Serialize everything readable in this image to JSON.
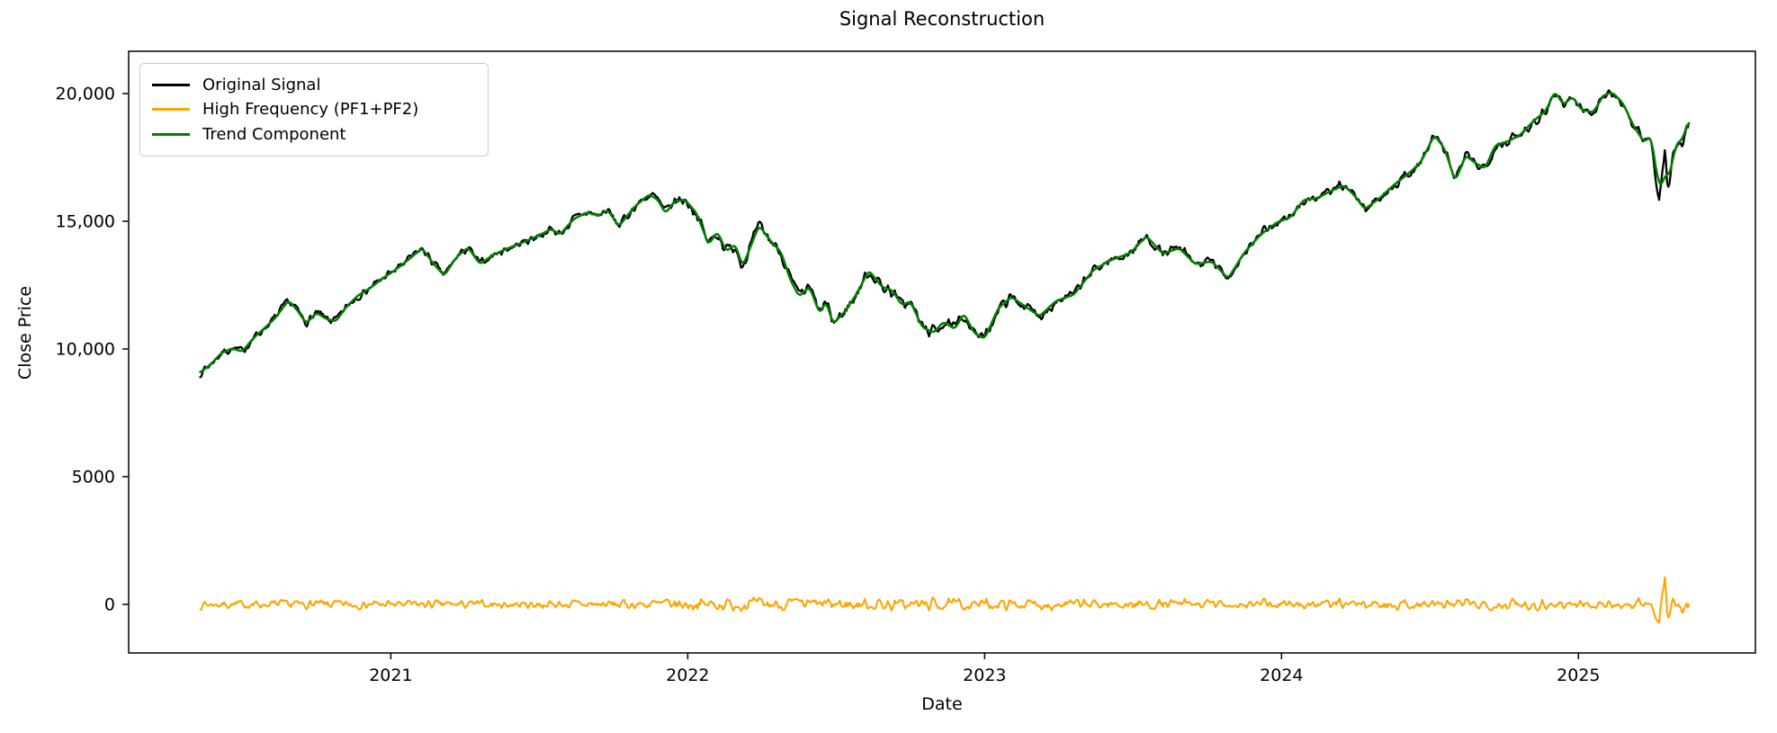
{
  "chart_data": {
    "type": "line",
    "title": "Signal Reconstruction",
    "xlabel": "Date",
    "ylabel": "Close Price",
    "grid": false,
    "legend_position": "upper left",
    "x_tick_labels": [
      "2021",
      "2022",
      "2023",
      "2024",
      "2025"
    ],
    "x_tick_values": [
      2021,
      2022,
      2023,
      2024,
      2025
    ],
    "y_tick_labels": [
      "0",
      "5000",
      "10,000",
      "15,000",
      "20,000"
    ],
    "y_tick_values": [
      0,
      5000,
      10000,
      15000,
      20000
    ],
    "xlim": [
      2020.117,
      2025.596
    ],
    "ylim": [
      -1901,
      21655
    ],
    "x_range_data": [
      2020.358,
      2025.372
    ],
    "samples": 1300,
    "series": [
      {
        "name": "Original Signal",
        "color": "#000000",
        "composition": "trend_plus_hf",
        "line_width": 2.3
      },
      {
        "name": "High Frequency (PF1+PF2)",
        "color": "#ffa500",
        "composition": "hf",
        "line_width": 2.1
      },
      {
        "name": "Trend Component",
        "color": "#008000",
        "composition": "trend",
        "line_width": 2.5
      }
    ],
    "trend_anchors": [
      [
        2020.358,
        9070
      ],
      [
        2020.395,
        9420
      ],
      [
        2020.43,
        9850
      ],
      [
        2020.465,
        10020
      ],
      [
        2020.5,
        9900
      ],
      [
        2020.535,
        10400
      ],
      [
        2020.57,
        10770
      ],
      [
        2020.61,
        11200
      ],
      [
        2020.655,
        11900
      ],
      [
        2020.685,
        11520
      ],
      [
        2020.715,
        11000
      ],
      [
        2020.75,
        11420
      ],
      [
        2020.78,
        11190
      ],
      [
        2020.815,
        11080
      ],
      [
        2020.85,
        11650
      ],
      [
        2020.89,
        12100
      ],
      [
        2020.93,
        12380
      ],
      [
        2020.97,
        12750
      ],
      [
        2021.01,
        13050
      ],
      [
        2021.06,
        13500
      ],
      [
        2021.105,
        13950
      ],
      [
        2021.145,
        13320
      ],
      [
        2021.18,
        12870
      ],
      [
        2021.22,
        13580
      ],
      [
        2021.26,
        13980
      ],
      [
        2021.3,
        13320
      ],
      [
        2021.34,
        13650
      ],
      [
        2021.385,
        13900
      ],
      [
        2021.44,
        14150
      ],
      [
        2021.5,
        14450
      ],
      [
        2021.54,
        14700
      ],
      [
        2021.57,
        14480
      ],
      [
        2021.615,
        15080
      ],
      [
        2021.66,
        15350
      ],
      [
        2021.7,
        15220
      ],
      [
        2021.73,
        15450
      ],
      [
        2021.768,
        14800
      ],
      [
        2021.82,
        15560
      ],
      [
        2021.87,
        16050
      ],
      [
        2021.9,
        15840
      ],
      [
        2021.925,
        15300
      ],
      [
        2021.955,
        15790
      ],
      [
        2021.99,
        15850
      ],
      [
        2022.03,
        15320
      ],
      [
        2022.07,
        14080
      ],
      [
        2022.1,
        14600
      ],
      [
        2022.13,
        13820
      ],
      [
        2022.16,
        14100
      ],
      [
        2022.185,
        13230
      ],
      [
        2022.24,
        14840
      ],
      [
        2022.28,
        14220
      ],
      [
        2022.315,
        13780
      ],
      [
        2022.345,
        12720
      ],
      [
        2022.375,
        12050
      ],
      [
        2022.41,
        12440
      ],
      [
        2022.445,
        11360
      ],
      [
        2022.465,
        11880
      ],
      [
        2022.49,
        10980
      ],
      [
        2022.53,
        11480
      ],
      [
        2022.57,
        12180
      ],
      [
        2022.61,
        13080
      ],
      [
        2022.655,
        12420
      ],
      [
        2022.69,
        12290
      ],
      [
        2022.72,
        11720
      ],
      [
        2022.75,
        11860
      ],
      [
        2022.79,
        10850
      ],
      [
        2022.83,
        10640
      ],
      [
        2022.86,
        11060
      ],
      [
        2022.9,
        10780
      ],
      [
        2022.93,
        11400
      ],
      [
        2022.965,
        10620
      ],
      [
        2023.0,
        10400
      ],
      [
        2023.045,
        11580
      ],
      [
        2023.09,
        12040
      ],
      [
        2023.135,
        11680
      ],
      [
        2023.185,
        11280
      ],
      [
        2023.24,
        11880
      ],
      [
        2023.3,
        12120
      ],
      [
        2023.365,
        13080
      ],
      [
        2023.425,
        13480
      ],
      [
        2023.49,
        13750
      ],
      [
        2023.545,
        14420
      ],
      [
        2023.6,
        13720
      ],
      [
        2023.655,
        13950
      ],
      [
        2023.71,
        13320
      ],
      [
        2023.765,
        13430
      ],
      [
        2023.82,
        12760
      ],
      [
        2023.875,
        13780
      ],
      [
        2023.93,
        14480
      ],
      [
        2023.985,
        14960
      ],
      [
        2024.03,
        15150
      ],
      [
        2024.075,
        15840
      ],
      [
        2024.12,
        15900
      ],
      [
        2024.165,
        16180
      ],
      [
        2024.21,
        16400
      ],
      [
        2024.245,
        16020
      ],
      [
        2024.28,
        15470
      ],
      [
        2024.33,
        15900
      ],
      [
        2024.38,
        16440
      ],
      [
        2024.43,
        16890
      ],
      [
        2024.47,
        17330
      ],
      [
        2024.515,
        18380
      ],
      [
        2024.55,
        17820
      ],
      [
        2024.585,
        16560
      ],
      [
        2024.62,
        17580
      ],
      [
        2024.65,
        17300
      ],
      [
        2024.685,
        17060
      ],
      [
        2024.72,
        17980
      ],
      [
        2024.76,
        18120
      ],
      [
        2024.8,
        18340
      ],
      [
        2024.85,
        18940
      ],
      [
        2024.89,
        19320
      ],
      [
        2024.92,
        20080
      ],
      [
        2024.95,
        19560
      ],
      [
        2024.98,
        19880
      ],
      [
        2025.01,
        19360
      ],
      [
        2025.05,
        19260
      ],
      [
        2025.085,
        19940
      ],
      [
        2025.115,
        20040
      ],
      [
        2025.15,
        19620
      ],
      [
        2025.185,
        18750
      ],
      [
        2025.22,
        18120
      ],
      [
        2025.245,
        18300
      ],
      [
        2025.268,
        16550
      ],
      [
        2025.283,
        16360
      ],
      [
        2025.293,
        17000
      ],
      [
        2025.303,
        16660
      ],
      [
        2025.33,
        18040
      ],
      [
        2025.35,
        18200
      ],
      [
        2025.372,
        18980
      ]
    ],
    "hf_noise": {
      "seed": 7,
      "smoothing_window": 3,
      "amplitude_envelope": [
        [
          2020.358,
          130
        ],
        [
          2020.8,
          140
        ],
        [
          2021.2,
          135
        ],
        [
          2021.6,
          140
        ],
        [
          2021.95,
          185
        ],
        [
          2022.2,
          210
        ],
        [
          2022.5,
          215
        ],
        [
          2022.8,
          200
        ],
        [
          2023.1,
          175
        ],
        [
          2023.5,
          160
        ],
        [
          2023.9,
          160
        ],
        [
          2024.3,
          155
        ],
        [
          2024.6,
          175
        ],
        [
          2024.95,
          185
        ],
        [
          2025.15,
          175
        ],
        [
          2025.24,
          190
        ],
        [
          2025.37,
          230
        ]
      ],
      "event_spikes": [
        [
          2025.25,
          0
        ],
        [
          2025.262,
          -650
        ],
        [
          2025.272,
          -850
        ],
        [
          2025.282,
          450
        ],
        [
          2025.292,
          1000
        ],
        [
          2025.3,
          -750
        ],
        [
          2025.31,
          -380
        ],
        [
          2025.32,
          230
        ],
        [
          2025.335,
          -180
        ],
        [
          2025.35,
          0
        ]
      ]
    }
  },
  "legend": {
    "items": [
      {
        "label": "Original Signal",
        "color": "#000000"
      },
      {
        "label": "High Frequency (PF1+PF2)",
        "color": "#ffa500"
      },
      {
        "label": "Trend Component",
        "color": "#008000"
      }
    ]
  }
}
